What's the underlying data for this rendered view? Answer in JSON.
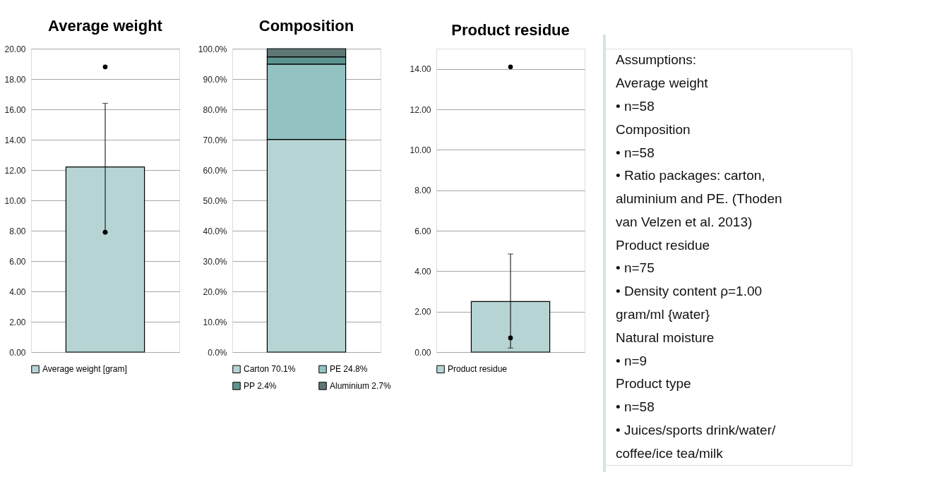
{
  "chart_data": [
    {
      "type": "bar",
      "title": "Average weight",
      "categories": [
        null
      ],
      "ylim": [
        0,
        20
      ],
      "yticks": [
        {
          "value": 0,
          "label": "0.00"
        },
        {
          "value": 2,
          "label": "2.00"
        },
        {
          "value": 4,
          "label": "4.00"
        },
        {
          "value": 6,
          "label": "6.00"
        },
        {
          "value": 8,
          "label": "8.00"
        },
        {
          "value": 10,
          "label": "10.00"
        },
        {
          "value": 12,
          "label": "12.00"
        },
        {
          "value": 14,
          "label": "14.00"
        },
        {
          "value": 16,
          "label": "16.00"
        },
        {
          "value": 18,
          "label": "18.00"
        },
        {
          "value": 20,
          "label": "20.00"
        }
      ],
      "grid": "y",
      "legend": "bottom",
      "series": [
        {
          "name": "Average weight [gram]",
          "color": "#b6d4d4",
          "values": [
            12.2
          ],
          "errors": [
            [
              7.9,
              16.4
            ]
          ]
        },
        {
          "type": "scatter",
          "color": "#000000",
          "values": [
            18.8
          ]
        },
        {
          "type": "scatter",
          "color": "#000000",
          "values": [
            7.9
          ]
        }
      ]
    },
    {
      "type": "bar",
      "title": "Composition",
      "categories": [
        null
      ],
      "stacked": true,
      "ylim": [
        0,
        100
      ],
      "yticks": [
        {
          "value": 0,
          "label": "0.0%"
        },
        {
          "value": 10,
          "label": "10.0%"
        },
        {
          "value": 20,
          "label": "20.0%"
        },
        {
          "value": 30,
          "label": "30.0%"
        },
        {
          "value": 40,
          "label": "40.0%"
        },
        {
          "value": 50,
          "label": "50.0%"
        },
        {
          "value": 60,
          "label": "60.0%"
        },
        {
          "value": 70,
          "label": "70.0%"
        },
        {
          "value": 80,
          "label": "80.0%"
        },
        {
          "value": 90,
          "label": "90.0%"
        },
        {
          "value": 100,
          "label": "100.0%"
        }
      ],
      "grid": "y",
      "legend": "bottom",
      "series": [
        {
          "name": "Carton 70.1%",
          "color": "#b6d4d4",
          "values": [
            70.1
          ]
        },
        {
          "name": "PE 24.8%",
          "color": "#93c2c2",
          "values": [
            24.8
          ]
        },
        {
          "name": "PP 2.4%",
          "color": "#5c9490",
          "values": [
            2.4
          ]
        },
        {
          "name": "Aluminium 2.7%",
          "color": "#5e7775",
          "values": [
            2.7
          ]
        }
      ]
    },
    {
      "type": "bar",
      "title": "Product residue",
      "categories": [
        null
      ],
      "ylim": [
        0,
        15
      ],
      "yticks": [
        {
          "value": 0,
          "label": "0.00"
        },
        {
          "value": 2,
          "label": "2.00"
        },
        {
          "value": 4,
          "label": "4.00"
        },
        {
          "value": 6,
          "label": "6.00"
        },
        {
          "value": 8,
          "label": "8.00"
        },
        {
          "value": 10,
          "label": "10.00"
        },
        {
          "value": 12,
          "label": "12.00"
        },
        {
          "value": 14,
          "label": "14.00"
        }
      ],
      "grid": "y",
      "legend": "bottom",
      "series": [
        {
          "name": "Product residue",
          "color": "#b6d4d4",
          "values": [
            2.5
          ],
          "errors": [
            [
              0.2,
              4.85
            ]
          ]
        },
        {
          "type": "scatter",
          "color": "#000000",
          "values": [
            14.1
          ]
        },
        {
          "type": "scatter",
          "color": "#000000",
          "values": [
            0.7
          ]
        }
      ]
    },
    {
      "type": "other",
      "annotations": [
        "Assumptions:",
        "Average weight",
        "•   n=58",
        "Composition",
        "•   n=58",
        "•   Ratio packages: carton,",
        "aluminium and PE. (Thoden",
        "van Velzen et al. 2013)",
        "Product residue",
        "•   n=75",
        "•   Density content ρ=1.00",
        "gram/ml {water}",
        "Natural moisture",
        "•   n=9",
        "Product type",
        "•   n=58",
        "•   Juices/sports drink/water/",
        "coffee/ice tea/milk"
      ]
    }
  ]
}
